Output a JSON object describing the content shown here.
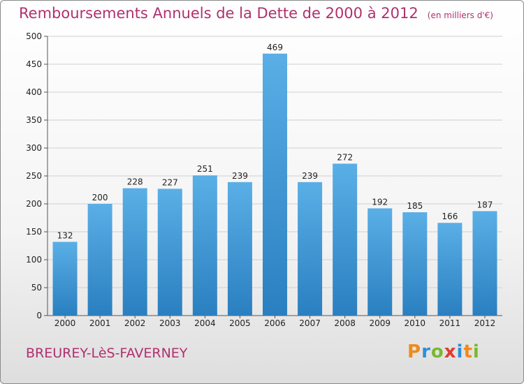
{
  "chart_data": {
    "type": "bar",
    "title": "Remboursements Annuels de la Dette de 2000 à 2012",
    "subtitle": "(en milliers d'€)",
    "categories": [
      "2000",
      "2001",
      "2002",
      "2003",
      "2004",
      "2005",
      "2006",
      "2007",
      "2008",
      "2009",
      "2010",
      "2011",
      "2012"
    ],
    "values": [
      132,
      200,
      228,
      227,
      251,
      239,
      469,
      239,
      272,
      192,
      185,
      166,
      187
    ],
    "ylim": [
      0,
      500
    ],
    "yticks": [
      0,
      50,
      100,
      150,
      200,
      250,
      300,
      350,
      400,
      450,
      500
    ],
    "grid": true,
    "bar_color_top": "#5aafe6",
    "bar_color_bottom": "#2a7fc0"
  },
  "footer": {
    "commune": "BREUREY-LèS-FAVERNEY",
    "brand_letters": [
      "P",
      "r",
      "o",
      "x",
      "i",
      "t",
      "i"
    ],
    "brand_colors": [
      "#f08a1c",
      "#2f8ed8",
      "#7ab82e",
      "#e43a2e",
      "#2f8ed8",
      "#f08a1c",
      "#7ab82e"
    ]
  }
}
